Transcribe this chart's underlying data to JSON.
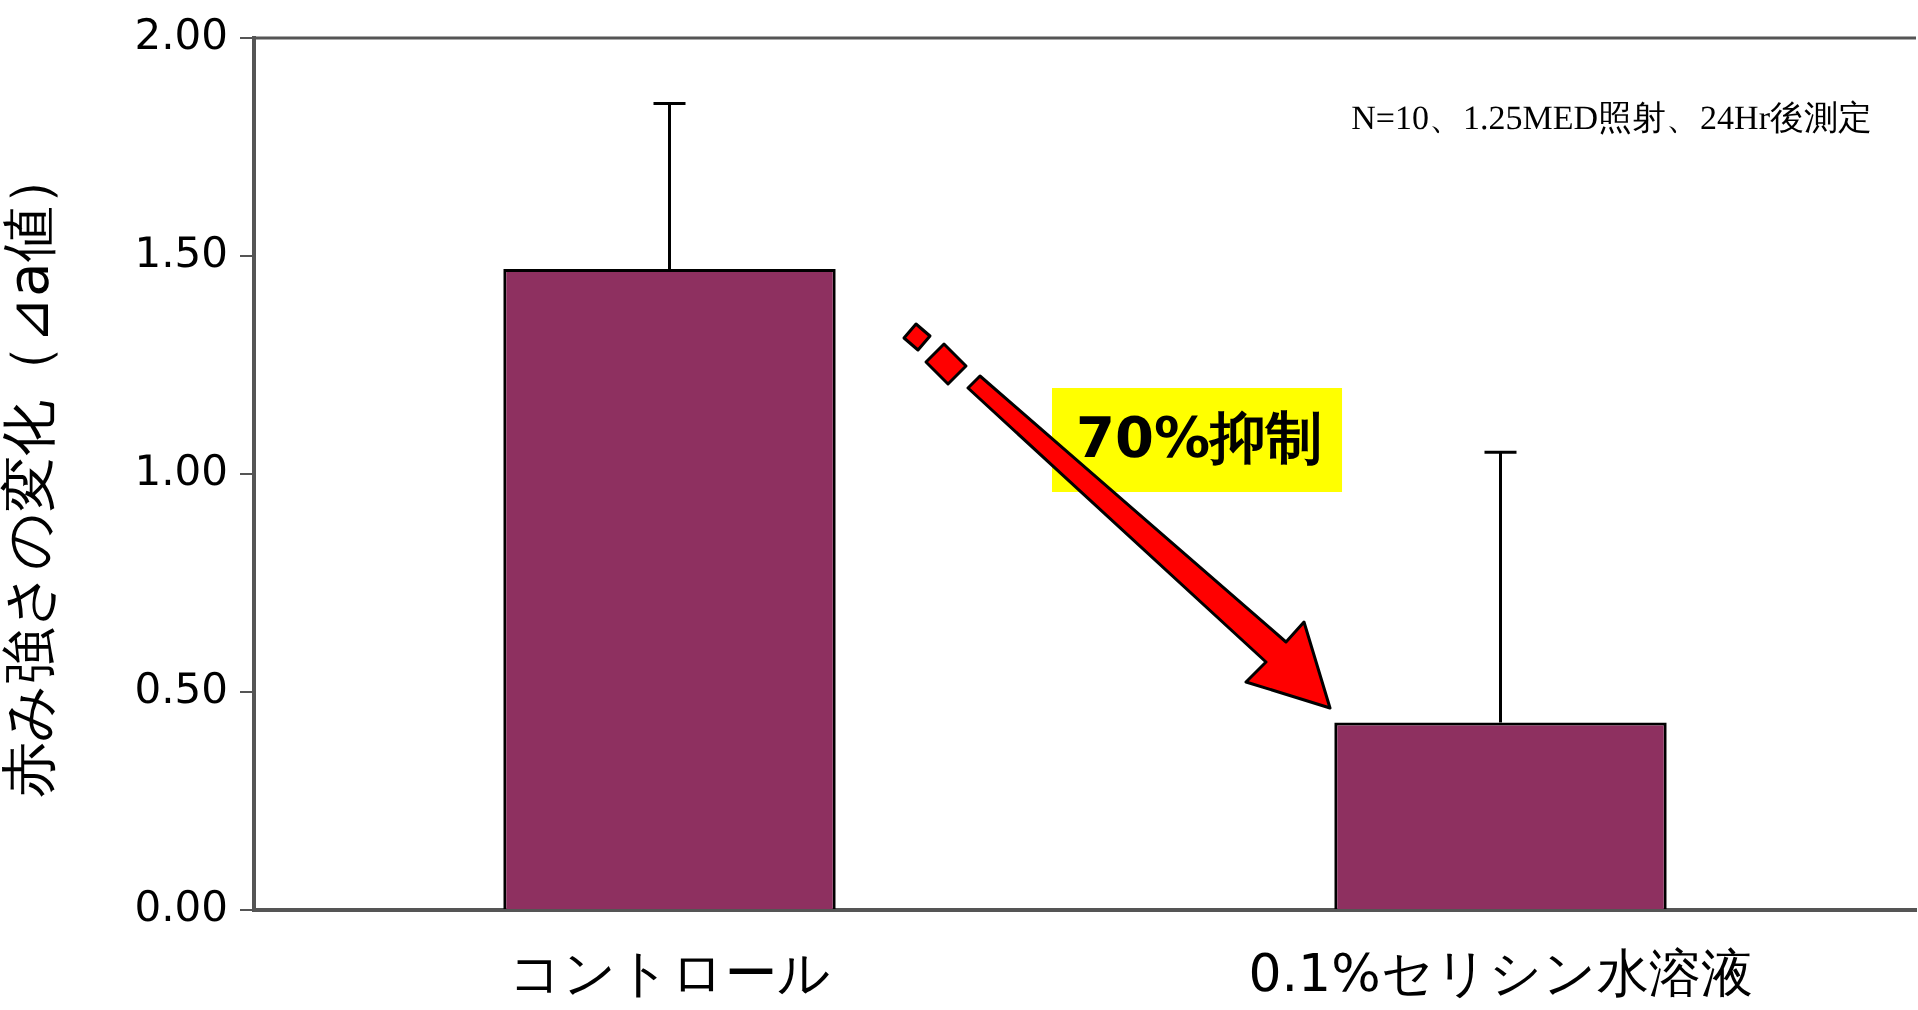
{
  "chart_data": {
    "type": "bar",
    "ylabel": "赤み強さの変化（⊿a値）",
    "categories": [
      "コントロール",
      "0.1%セリシン水溶液"
    ],
    "values": [
      1.47,
      0.43
    ],
    "errors": [
      [
        1.47,
        1.85
      ],
      [
        0.43,
        1.05
      ]
    ],
    "color": "#8e3060",
    "ylim": [
      0,
      2
    ],
    "yticks": [
      {
        "value": 0,
        "label": "0.00"
      },
      {
        "value": 0.5,
        "label": "0.50"
      },
      {
        "value": 1,
        "label": "1.00"
      },
      {
        "value": 1.5,
        "label": "1.50"
      },
      {
        "value": 2,
        "label": "2.00"
      }
    ],
    "grid": false,
    "legend": false,
    "annotations": [
      "N=10、1.25MED照射、24Hr後測定",
      "70%抑制"
    ]
  }
}
